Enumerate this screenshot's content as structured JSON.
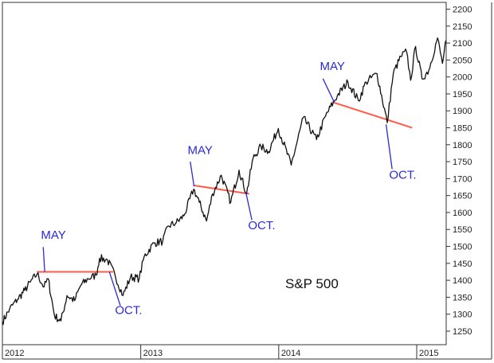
{
  "chart_data": {
    "type": "line",
    "title": "S&P 500",
    "xlabel": "",
    "ylabel": "",
    "grid": false,
    "colors": {
      "line": "#111111",
      "trend": "#ff5a4a",
      "annotation": "#2a2ad8",
      "frame": "#333333"
    },
    "ylim": [
      1210,
      2220
    ],
    "xlim": [
      "2012-01-01",
      "2015-03-20"
    ],
    "y_ticks": [
      "1250",
      "1300",
      "1350",
      "1400",
      "1450",
      "1500",
      "1550",
      "1600",
      "1650",
      "1700",
      "1750",
      "1800",
      "1850",
      "1900",
      "1950",
      "2000",
      "2050",
      "2100",
      "2150",
      "2200"
    ],
    "x_ticks": [
      {
        "label": "2012",
        "date": "2012-01-01"
      },
      {
        "label": "2013",
        "date": "2013-01-01"
      },
      {
        "label": "2014",
        "date": "2014-01-01"
      },
      {
        "label": "2015",
        "date": "2015-01-01"
      }
    ],
    "series": [
      {
        "points": [
          [
            "2012-01-01",
            1277
          ],
          [
            "2012-01-20",
            1315
          ],
          [
            "2012-02-10",
            1344
          ],
          [
            "2012-02-29",
            1370
          ],
          [
            "2012-03-15",
            1395
          ],
          [
            "2012-04-02",
            1419
          ],
          [
            "2012-04-20",
            1380
          ],
          [
            "2012-05-01",
            1405
          ],
          [
            "2012-05-18",
            1295
          ],
          [
            "2012-06-04",
            1280
          ],
          [
            "2012-06-20",
            1355
          ],
          [
            "2012-07-10",
            1340
          ],
          [
            "2012-07-26",
            1385
          ],
          [
            "2012-08-15",
            1405
          ],
          [
            "2012-09-05",
            1415
          ],
          [
            "2012-09-14",
            1465
          ],
          [
            "2012-10-05",
            1460
          ],
          [
            "2012-10-25",
            1415
          ],
          [
            "2012-11-15",
            1355
          ],
          [
            "2012-12-05",
            1410
          ],
          [
            "2012-12-28",
            1405
          ],
          [
            "2013-01-10",
            1470
          ],
          [
            "2013-02-05",
            1510
          ],
          [
            "2013-02-28",
            1515
          ],
          [
            "2013-03-15",
            1560
          ],
          [
            "2013-04-05",
            1570
          ],
          [
            "2013-04-25",
            1590
          ],
          [
            "2013-05-21",
            1669
          ],
          [
            "2013-06-05",
            1630
          ],
          [
            "2013-06-24",
            1575
          ],
          [
            "2013-07-10",
            1655
          ],
          [
            "2013-08-02",
            1710
          ],
          [
            "2013-08-27",
            1630
          ],
          [
            "2013-09-18",
            1725
          ],
          [
            "2013-10-08",
            1655
          ],
          [
            "2013-10-25",
            1760
          ],
          [
            "2013-11-15",
            1795
          ],
          [
            "2013-12-05",
            1780
          ],
          [
            "2013-12-31",
            1848
          ],
          [
            "2014-02-03",
            1740
          ],
          [
            "2014-03-07",
            1880
          ],
          [
            "2014-04-11",
            1815
          ],
          [
            "2014-05-05",
            1885
          ],
          [
            "2014-06-05",
            1945
          ],
          [
            "2014-07-03",
            1985
          ],
          [
            "2014-07-31",
            1930
          ],
          [
            "2014-08-20",
            1985
          ],
          [
            "2014-09-18",
            2010
          ],
          [
            "2014-10-15",
            1865
          ],
          [
            "2014-10-31",
            2010
          ],
          [
            "2014-11-20",
            2060
          ],
          [
            "2014-12-05",
            2075
          ],
          [
            "2014-12-16",
            1990
          ],
          [
            "2014-12-29",
            2090
          ],
          [
            "2015-01-15",
            1995
          ],
          [
            "2015-02-02",
            2020
          ],
          [
            "2015-02-25",
            2115
          ],
          [
            "2015-03-10",
            2040
          ],
          [
            "2015-03-20",
            2108
          ]
        ]
      }
    ],
    "trend_lines": [
      {
        "from": [
          "2012-04-01",
          1425
        ],
        "to": [
          "2012-10-20",
          1425
        ]
      },
      {
        "from": [
          "2013-05-21",
          1680
        ],
        "to": [
          "2013-10-15",
          1655
        ]
      },
      {
        "from": [
          "2014-05-25",
          1925
        ],
        "to": [
          "2014-12-20",
          1850
        ]
      }
    ],
    "annotations": [
      {
        "text": "MAY",
        "label_at": [
          "2012-04-12",
          1522
        ],
        "line_from": [
          "2012-04-18",
          1498
        ],
        "line_to": [
          "2012-04-22",
          1425
        ]
      },
      {
        "text": "OCT.",
        "label_at": [
          "2012-10-25",
          1300
        ],
        "line_from": [
          "2012-11-08",
          1325
        ],
        "line_to": [
          "2012-10-10",
          1425
        ]
      },
      {
        "text": "MAY",
        "label_at": [
          "2013-05-05",
          1772
        ],
        "line_from": [
          "2013-05-12",
          1750
        ],
        "line_to": [
          "2013-05-22",
          1677
        ]
      },
      {
        "text": "OCT.",
        "label_at": [
          "2013-10-12",
          1550
        ],
        "line_from": [
          "2013-10-22",
          1578
        ],
        "line_to": [
          "2013-10-06",
          1660
        ]
      },
      {
        "text": "MAY",
        "label_at": [
          "2014-04-20",
          2020
        ],
        "line_from": [
          "2014-04-28",
          1995
        ],
        "line_to": [
          "2014-05-28",
          1925
        ]
      },
      {
        "text": "OCT.",
        "label_at": [
          "2014-10-20",
          1700
        ],
        "line_from": [
          "2014-10-28",
          1728
        ],
        "line_to": [
          "2014-10-12",
          1860
        ]
      }
    ]
  }
}
